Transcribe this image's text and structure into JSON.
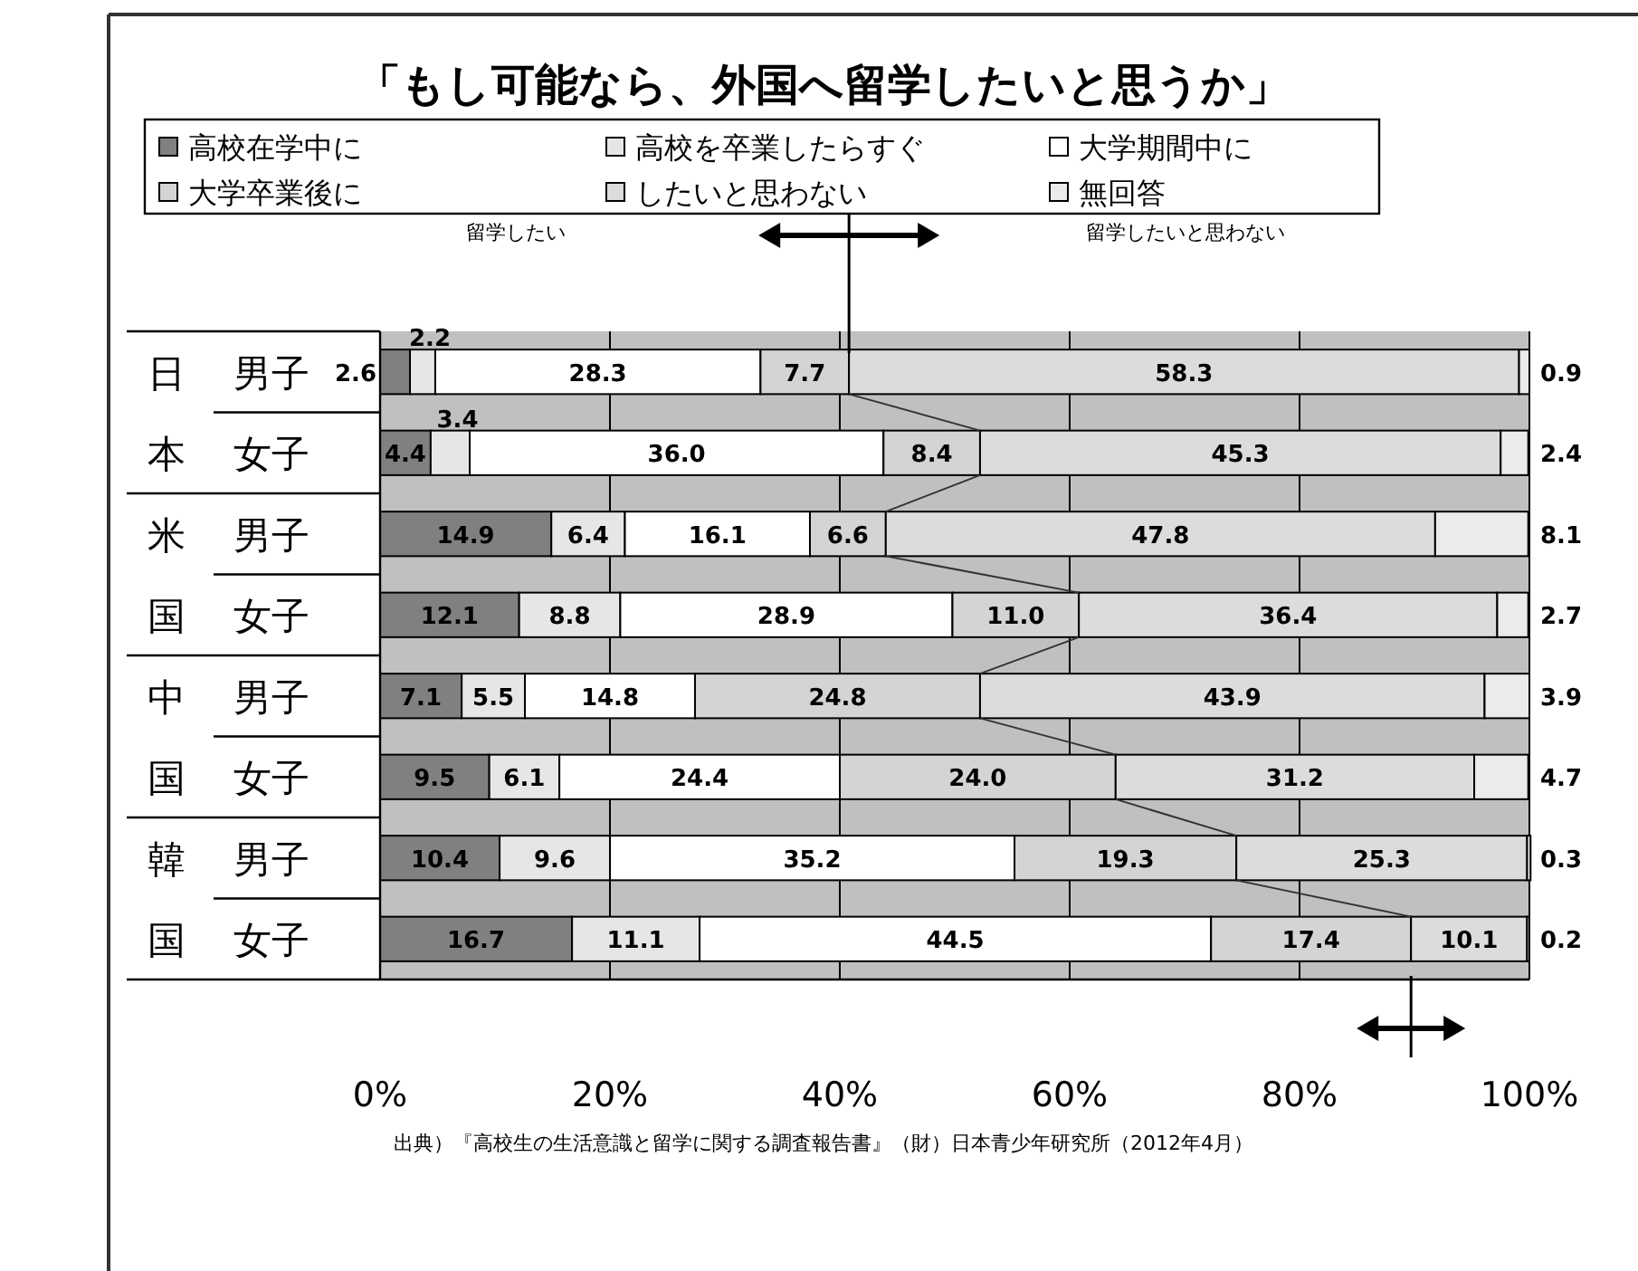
{
  "chart_data": {
    "type": "bar",
    "orientation": "horizontal",
    "stacked": true,
    "title": "「もし可能なら、外国へ留学したいと思うか」",
    "categories": [
      "男子",
      "女子",
      "男子",
      "女子",
      "男子",
      "女子",
      "男子",
      "女子"
    ],
    "series": [
      {
        "name": "高校在学中に",
        "color": "#808080",
        "values": [
          2.6,
          4.4,
          14.9,
          12.1,
          7.1,
          9.5,
          10.4,
          16.7
        ],
        "value_labels": [
          "2.6",
          "4.4",
          "14.9",
          "12.1",
          "7.1",
          "9.5",
          "10.4",
          "16.7"
        ]
      },
      {
        "name": "高校を卒業したらすぐ",
        "color": "#e6e6e6",
        "values": [
          2.2,
          3.4,
          6.4,
          8.8,
          5.5,
          6.1,
          9.6,
          11.1
        ],
        "value_labels": [
          "2.2",
          "3.4",
          "6.4",
          "8.8",
          "5.5",
          "6.1",
          "9.6",
          "11.1"
        ]
      },
      {
        "name": "大学期間中に",
        "color": "#ffffff",
        "values": [
          28.3,
          36.0,
          16.1,
          28.9,
          14.8,
          24.4,
          35.2,
          44.5
        ],
        "value_labels": [
          "28.3",
          "36.0",
          "16.1",
          "28.9",
          "14.8",
          "24.4",
          "35.2",
          "44.5"
        ]
      },
      {
        "name": "大学卒業後に",
        "color": "#d4d4d4",
        "values": [
          7.7,
          8.4,
          6.6,
          11.0,
          24.8,
          24.0,
          19.3,
          17.4
        ],
        "value_labels": [
          "7.7",
          "8.4",
          "6.6",
          "11.0",
          "24.8",
          "24.0",
          "19.3",
          "17.4"
        ]
      },
      {
        "name": "したいと思わない",
        "color": "#dcdcdc",
        "values": [
          58.3,
          45.3,
          47.8,
          36.4,
          43.9,
          31.2,
          25.3,
          10.1
        ],
        "value_labels": [
          "58.3",
          "45.3",
          "47.8",
          "36.4",
          "43.9",
          "31.2",
          "25.3",
          "10.1"
        ]
      },
      {
        "name": "無回答",
        "color": "#ebebeb",
        "values": [
          0.9,
          2.4,
          8.1,
          2.7,
          3.9,
          4.7,
          0.3,
          0.2
        ],
        "value_labels": [
          "0.9",
          "2.4",
          "8.1",
          "2.7",
          "3.9",
          "4.7",
          "0.3",
          "0.2"
        ]
      }
    ],
    "xlim": [
      0,
      100
    ],
    "xticks": [
      {
        "value": 0,
        "label": "0%"
      },
      {
        "value": 20,
        "label": "20%"
      },
      {
        "value": 40,
        "label": "40%"
      },
      {
        "value": 60,
        "label": "60%"
      },
      {
        "value": 80,
        "label": "80%"
      },
      {
        "value": 100,
        "label": "100%"
      }
    ],
    "grid": "x",
    "legend": "top",
    "annotations": [
      "日本",
      "米国",
      "中国",
      "韓国",
      "留学したい",
      "留学したいと思わない",
      "出典）『高校生の生活意識と留学に関する調査報告書』（財）日本青少年研究所（2012年4月）"
    ]
  }
}
